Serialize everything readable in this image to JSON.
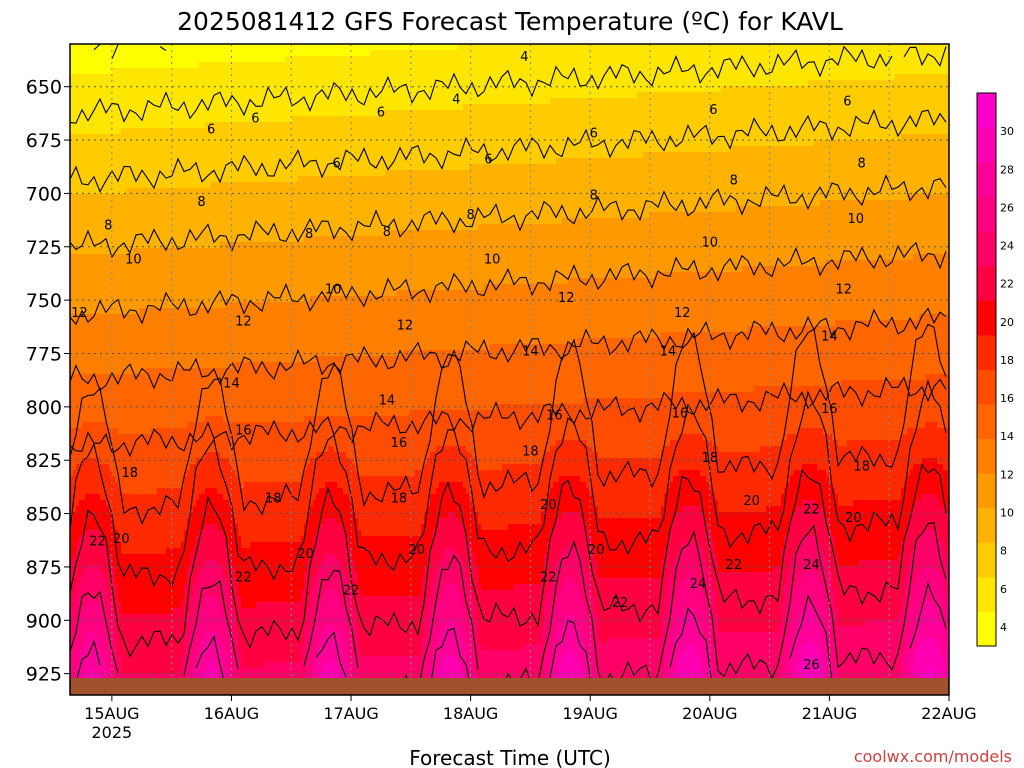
{
  "chart_data": {
    "type": "heatmap",
    "title": "2025081412 GFS Forecast Temperature (ºC) for KAVL",
    "xlabel": "Forecast Time (UTC)",
    "ylabel": "",
    "x_ticks": [
      {
        "label": "15AUG",
        "sublabel": "2025",
        "day": 0
      },
      {
        "label": "16AUG",
        "sublabel": "",
        "day": 1
      },
      {
        "label": "17AUG",
        "sublabel": "",
        "day": 2
      },
      {
        "label": "18AUG",
        "sublabel": "",
        "day": 3
      },
      {
        "label": "19AUG",
        "sublabel": "",
        "day": 4
      },
      {
        "label": "20AUG",
        "sublabel": "",
        "day": 5
      },
      {
        "label": "21AUG",
        "sublabel": "",
        "day": 6
      },
      {
        "label": "22AUG",
        "sublabel": "",
        "day": 7
      }
    ],
    "x_range_days": [
      -0.35,
      7.0
    ],
    "y_ticks": [
      650,
      675,
      700,
      725,
      750,
      775,
      800,
      825,
      850,
      875,
      900,
      925
    ],
    "y_range_hpa": [
      630,
      935
    ],
    "ground_level_hpa": 927,
    "colorbar": {
      "ticks": [
        4,
        6,
        8,
        10,
        12,
        14,
        16,
        18,
        20,
        22,
        24,
        26,
        28,
        30
      ],
      "range": [
        3,
        32
      ],
      "colors": [
        "#ffff00",
        "#ffe600",
        "#ffcc00",
        "#ffb300",
        "#ff9900",
        "#ff8000",
        "#ff6600",
        "#ff4d00",
        "#ff2a00",
        "#ff0000",
        "#ff0040",
        "#ff0066",
        "#ff0080",
        "#ff0099",
        "#ff00b3",
        "#ff00cc"
      ]
    },
    "contour_levels": [
      4,
      6,
      8,
      10,
      12,
      14,
      16,
      18,
      20,
      22,
      24,
      26
    ],
    "contour_labels": [
      {
        "text": "4",
        "day": 3.45,
        "p": 636
      },
      {
        "text": "4",
        "day": 2.88,
        "p": 656
      },
      {
        "text": "6",
        "day": 0.83,
        "p": 670
      },
      {
        "text": "6",
        "day": 1.2,
        "p": 665
      },
      {
        "text": "6",
        "day": 1.88,
        "p": 686
      },
      {
        "text": "6",
        "day": 2.25,
        "p": 662
      },
      {
        "text": "6",
        "day": 3.15,
        "p": 684
      },
      {
        "text": "6",
        "day": 4.03,
        "p": 672
      },
      {
        "text": "6",
        "day": 5.03,
        "p": 661
      },
      {
        "text": "6",
        "day": 6.15,
        "p": 657
      },
      {
        "text": "8",
        "day": -0.03,
        "p": 715
      },
      {
        "text": "8",
        "day": 0.75,
        "p": 704
      },
      {
        "text": "8",
        "day": 1.65,
        "p": 719
      },
      {
        "text": "8",
        "day": 2.3,
        "p": 718
      },
      {
        "text": "8",
        "day": 3.0,
        "p": 710
      },
      {
        "text": "8",
        "day": 4.03,
        "p": 701
      },
      {
        "text": "8",
        "day": 5.2,
        "p": 694
      },
      {
        "text": "8",
        "day": 6.27,
        "p": 686
      },
      {
        "text": "10",
        "day": 0.18,
        "p": 731
      },
      {
        "text": "10",
        "day": 1.85,
        "p": 745
      },
      {
        "text": "10",
        "day": 3.18,
        "p": 731
      },
      {
        "text": "10",
        "day": 5.0,
        "p": 723
      },
      {
        "text": "10",
        "day": 6.22,
        "p": 712
      },
      {
        "text": "12",
        "day": -0.27,
        "p": 756
      },
      {
        "text": "12",
        "day": 1.1,
        "p": 760
      },
      {
        "text": "12",
        "day": 2.45,
        "p": 762
      },
      {
        "text": "12",
        "day": 3.8,
        "p": 749
      },
      {
        "text": "12",
        "day": 4.77,
        "p": 756
      },
      {
        "text": "12",
        "day": 6.12,
        "p": 745
      },
      {
        "text": "14",
        "day": 1.0,
        "p": 789
      },
      {
        "text": "14",
        "day": 2.3,
        "p": 797
      },
      {
        "text": "14",
        "day": 3.5,
        "p": 774
      },
      {
        "text": "14",
        "day": 4.65,
        "p": 774
      },
      {
        "text": "14",
        "day": 6.0,
        "p": 767
      },
      {
        "text": "16",
        "day": 1.1,
        "p": 811
      },
      {
        "text": "16",
        "day": 2.4,
        "p": 817
      },
      {
        "text": "16",
        "day": 3.7,
        "p": 804
      },
      {
        "text": "16",
        "day": 4.75,
        "p": 803
      },
      {
        "text": "16",
        "day": 6.0,
        "p": 801
      },
      {
        "text": "18",
        "day": 0.15,
        "p": 831
      },
      {
        "text": "18",
        "day": 1.35,
        "p": 843
      },
      {
        "text": "18",
        "day": 2.4,
        "p": 843
      },
      {
        "text": "18",
        "day": 3.5,
        "p": 821
      },
      {
        "text": "18",
        "day": 5.0,
        "p": 824
      },
      {
        "text": "18",
        "day": 6.27,
        "p": 828
      },
      {
        "text": "20",
        "day": 0.08,
        "p": 862
      },
      {
        "text": "20",
        "day": 1.62,
        "p": 869
      },
      {
        "text": "20",
        "day": 2.55,
        "p": 867
      },
      {
        "text": "20",
        "day": 3.65,
        "p": 846
      },
      {
        "text": "20",
        "day": 4.05,
        "p": 867
      },
      {
        "text": "20",
        "day": 5.35,
        "p": 844
      },
      {
        "text": "20",
        "day": 6.2,
        "p": 852
      },
      {
        "text": "22",
        "day": -0.12,
        "p": 863
      },
      {
        "text": "22",
        "day": 1.1,
        "p": 880
      },
      {
        "text": "22",
        "day": 2.0,
        "p": 886
      },
      {
        "text": "22",
        "day": 3.65,
        "p": 880
      },
      {
        "text": "22",
        "day": 4.25,
        "p": 892
      },
      {
        "text": "22",
        "day": 5.2,
        "p": 874
      },
      {
        "text": "22",
        "day": 5.85,
        "p": 848
      },
      {
        "text": "24",
        "day": 4.9,
        "p": 883
      },
      {
        "text": "24",
        "day": 5.85,
        "p": 874
      },
      {
        "text": "26",
        "day": 5.85,
        "p": 921
      }
    ],
    "credit": "coolwx.com/models"
  }
}
